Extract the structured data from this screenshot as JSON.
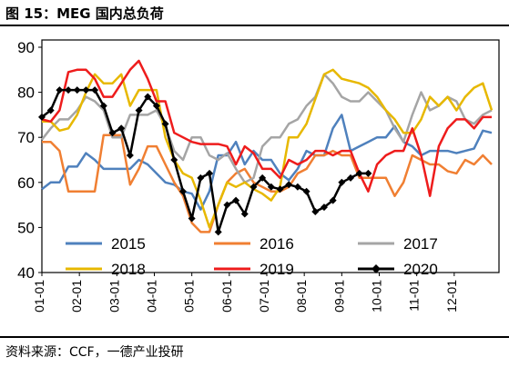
{
  "header": {
    "title": "图 15：MEG 国内总负荷"
  },
  "footer": {
    "source": "资料来源：CCF，一德产业投研"
  },
  "chart_data": {
    "type": "line",
    "title": "MEG 国内总负荷",
    "xlabel": "",
    "ylabel": "",
    "ylim": [
      40,
      90
    ],
    "yticks": [
      "40",
      "50",
      "60",
      "70",
      "80",
      "90"
    ],
    "xticks": [
      "01-01",
      "02-01",
      "03-01",
      "04-01",
      "05-01",
      "06-01",
      "07-01",
      "08-01",
      "09-01",
      "10-01",
      "11-01",
      "12-01"
    ],
    "x_unit": "week_index_0_to_51",
    "grid": false,
    "legend": "bottom",
    "series": [
      {
        "name": "2015",
        "color": "#4f81bd",
        "width": 2.5,
        "marker": false,
        "x": [
          0,
          1,
          2,
          3,
          4,
          5,
          6,
          7,
          8,
          9,
          10,
          11,
          12,
          13,
          14,
          15,
          16,
          17,
          18,
          19,
          20,
          21,
          22,
          23,
          24,
          25,
          26,
          27,
          28,
          29,
          30,
          31,
          32,
          33,
          34,
          35,
          36,
          37,
          38,
          39,
          40,
          41,
          42,
          43,
          44,
          45,
          46,
          47,
          48,
          49,
          50,
          51
        ],
        "values": [
          58.5,
          60,
          60,
          63.5,
          63.5,
          66.5,
          65,
          63,
          63,
          63,
          63,
          65,
          64,
          62,
          60,
          59.5,
          58,
          57.5,
          54,
          58,
          66,
          66,
          69,
          64,
          67,
          65,
          65,
          62,
          60.5,
          63,
          67,
          66,
          66,
          72,
          75,
          67,
          68,
          69,
          70,
          70,
          72.5,
          69,
          68,
          66,
          67,
          67,
          67,
          66.5,
          67,
          67.5,
          71.5,
          71
        ]
      },
      {
        "name": "2016",
        "color": "#f07f32",
        "width": 2.5,
        "marker": false,
        "x": [
          0,
          1,
          2,
          3,
          4,
          5,
          6,
          7,
          8,
          9,
          10,
          11,
          12,
          13,
          14,
          15,
          16,
          17,
          18,
          19,
          20,
          21,
          22,
          23,
          24,
          25,
          26,
          27,
          28,
          29,
          30,
          31,
          32,
          33,
          34,
          35,
          36,
          37,
          38,
          39,
          40,
          41,
          42,
          43,
          44,
          45,
          46,
          47,
          48,
          49,
          50,
          51
        ],
        "values": [
          69,
          69,
          67,
          58,
          58,
          58,
          58,
          70.5,
          70.5,
          70.5,
          59.5,
          63,
          68,
          68,
          64,
          60,
          57,
          51,
          49,
          49,
          55,
          60,
          62,
          63,
          60,
          59,
          58,
          58,
          59,
          62,
          63,
          66,
          66,
          67,
          66,
          66,
          61,
          61,
          61,
          61,
          57,
          60,
          66,
          65,
          64,
          64,
          62.5,
          62,
          65,
          64,
          66,
          64
        ]
      },
      {
        "name": "2017",
        "color": "#a5a5a5",
        "width": 2.5,
        "marker": false,
        "x": [
          0,
          1,
          2,
          3,
          4,
          5,
          6,
          7,
          8,
          9,
          10,
          11,
          12,
          13,
          14,
          15,
          16,
          17,
          18,
          19,
          20,
          21,
          22,
          23,
          24,
          25,
          26,
          27,
          28,
          29,
          30,
          31,
          32,
          33,
          34,
          35,
          36,
          37,
          38,
          39,
          40,
          41,
          42,
          43,
          44,
          45,
          46,
          47,
          48,
          49,
          50,
          51
        ],
        "values": [
          69.5,
          72,
          74,
          74,
          76,
          79,
          78,
          76,
          70,
          70,
          75,
          75,
          75,
          76,
          72.5,
          67,
          65,
          70,
          70,
          66,
          65,
          66.5,
          63,
          60,
          61,
          68,
          70,
          70,
          73,
          74,
          77,
          79,
          84,
          82,
          79,
          78,
          78,
          80,
          78,
          76,
          72,
          69,
          75,
          80,
          76,
          77,
          79,
          78,
          74,
          73,
          75,
          76
        ]
      },
      {
        "name": "2018",
        "color": "#e7b800",
        "width": 2.5,
        "marker": false,
        "x": [
          0,
          1,
          2,
          3,
          4,
          5,
          6,
          7,
          8,
          9,
          10,
          11,
          12,
          13,
          14,
          15,
          16,
          17,
          18,
          19,
          20,
          21,
          22,
          23,
          24,
          25,
          26,
          27,
          28,
          29,
          30,
          31,
          32,
          33,
          34,
          35,
          36,
          37,
          38,
          39,
          40,
          41,
          42,
          43,
          44,
          45,
          46,
          47,
          48,
          49,
          50,
          51
        ],
        "values": [
          73.5,
          73.5,
          71.5,
          72,
          75,
          80,
          84,
          82,
          82,
          84,
          77,
          80.5,
          80.5,
          80.5,
          70,
          65,
          62,
          61,
          56,
          50,
          55,
          60,
          59,
          60,
          58.5,
          57.5,
          56,
          59,
          70,
          70,
          73,
          78.5,
          84,
          85,
          83,
          82.5,
          82,
          81,
          79,
          76,
          74,
          71,
          71,
          74,
          79,
          77,
          79,
          76,
          79,
          81,
          82,
          76
        ]
      },
      {
        "name": "2019",
        "color": "#ee1c1c",
        "width": 2.5,
        "marker": false,
        "x": [
          0,
          1,
          2,
          3,
          4,
          5,
          6,
          7,
          8,
          9,
          10,
          11,
          12,
          13,
          14,
          15,
          16,
          17,
          18,
          19,
          20,
          21,
          22,
          23,
          24,
          25,
          26,
          27,
          28,
          29,
          30,
          31,
          32,
          33,
          34,
          35,
          36,
          37,
          38,
          39,
          40,
          41,
          42,
          43,
          44,
          45,
          46,
          47,
          48,
          49,
          50,
          51
        ],
        "values": [
          74,
          73.5,
          76,
          84.5,
          85,
          85,
          83,
          79,
          79,
          82,
          85,
          87,
          83,
          78,
          78,
          71,
          70,
          69,
          68.5,
          68.5,
          68.5,
          68,
          64,
          68,
          66.5,
          63,
          63,
          61,
          65,
          64,
          65,
          67,
          67,
          66,
          67,
          67,
          62,
          58,
          64,
          66,
          67,
          67,
          72,
          66,
          57,
          68,
          72,
          74,
          74,
          72,
          74.5,
          74.5
        ]
      },
      {
        "name": "2020",
        "color": "#000000",
        "width": 2.5,
        "marker": true,
        "x": [
          0,
          1,
          2,
          3,
          4,
          5,
          6,
          7,
          8,
          9,
          10,
          11,
          12,
          13,
          14,
          15,
          16,
          17,
          18,
          19,
          20,
          21,
          22,
          23,
          24,
          25,
          26,
          27,
          28,
          29,
          30,
          31,
          32,
          33,
          34,
          35,
          36,
          37
        ],
        "values": [
          74.5,
          76,
          80.5,
          80.5,
          80.5,
          80.5,
          80.5,
          77,
          71,
          72,
          66,
          76,
          79,
          77,
          73,
          65,
          58,
          52,
          61,
          62,
          49,
          55,
          56,
          53,
          59,
          61,
          59,
          58.5,
          59.5,
          59,
          58,
          53.5,
          54.5,
          56,
          60,
          61,
          62,
          62
        ]
      }
    ]
  }
}
